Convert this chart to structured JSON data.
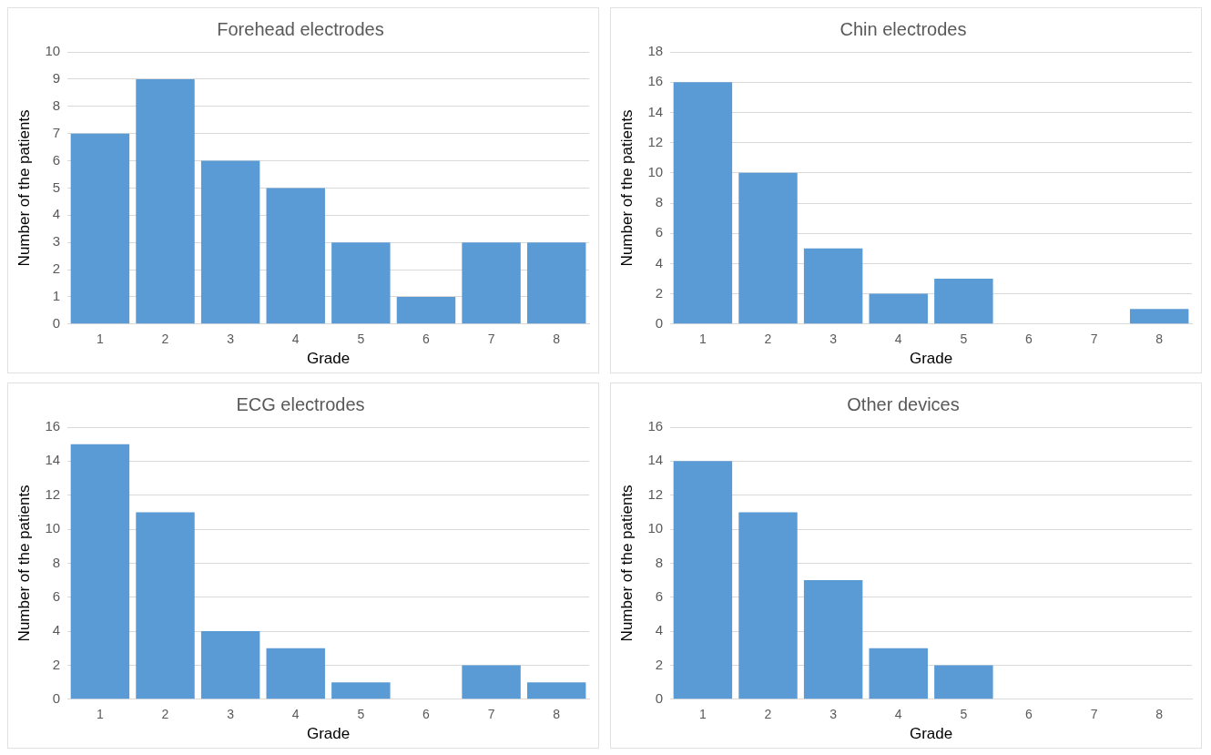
{
  "chart_data": [
    {
      "type": "bar",
      "title": "Forehead electrodes",
      "xlabel": "Grade",
      "ylabel": "Number of the patients",
      "categories": [
        "1",
        "2",
        "3",
        "4",
        "5",
        "6",
        "7",
        "8"
      ],
      "values": [
        7,
        9,
        6,
        5,
        3,
        1,
        3,
        3
      ],
      "color": "#5b9bd5",
      "ylim": [
        0,
        10
      ],
      "yticks": [
        0,
        1,
        2,
        3,
        4,
        5,
        6,
        7,
        8,
        9,
        10
      ],
      "grid": "y",
      "legend": false
    },
    {
      "type": "bar",
      "title": "Chin electrodes",
      "xlabel": "Grade",
      "ylabel": "Number of the patients",
      "categories": [
        "1",
        "2",
        "3",
        "4",
        "5",
        "6",
        "7",
        "8"
      ],
      "values": [
        16,
        10,
        5,
        2,
        3,
        0,
        0,
        1
      ],
      "color": "#5b9bd5",
      "ylim": [
        0,
        18
      ],
      "yticks": [
        0,
        2,
        4,
        6,
        8,
        10,
        12,
        14,
        16,
        18
      ],
      "grid": "y",
      "legend": false
    },
    {
      "type": "bar",
      "title": "ECG electrodes",
      "xlabel": "Grade",
      "ylabel": "Number of the patients",
      "categories": [
        "1",
        "2",
        "3",
        "4",
        "5",
        "6",
        "7",
        "8"
      ],
      "values": [
        15,
        11,
        4,
        3,
        1,
        0,
        2,
        1
      ],
      "color": "#5b9bd5",
      "ylim": [
        0,
        16
      ],
      "yticks": [
        0,
        2,
        4,
        6,
        8,
        10,
        12,
        14,
        16
      ],
      "grid": "y",
      "legend": false
    },
    {
      "type": "bar",
      "title": "Other devices",
      "xlabel": "Grade",
      "ylabel": "Number of the patients",
      "categories": [
        "1",
        "2",
        "3",
        "4",
        "5",
        "6",
        "7",
        "8"
      ],
      "values": [
        14,
        11,
        7,
        3,
        2,
        0,
        0,
        0
      ],
      "color": "#5b9bd5",
      "ylim": [
        0,
        16
      ],
      "yticks": [
        0,
        2,
        4,
        6,
        8,
        10,
        12,
        14,
        16
      ],
      "grid": "y",
      "legend": false
    }
  ]
}
